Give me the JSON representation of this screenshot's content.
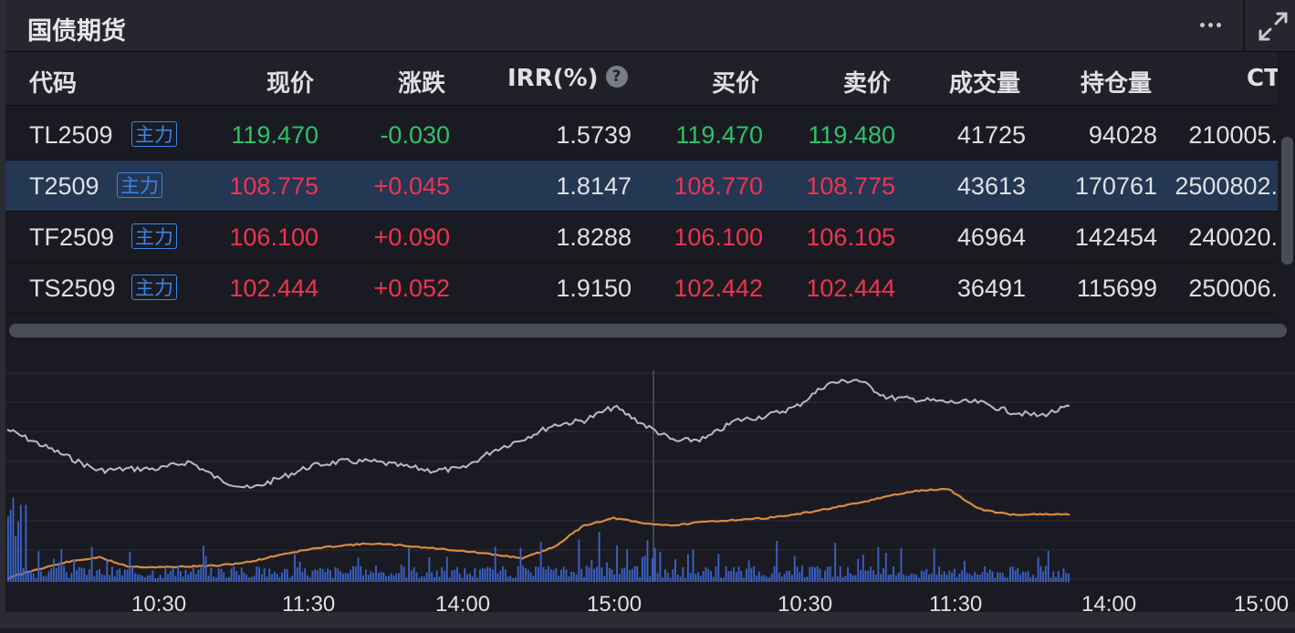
{
  "header": {
    "title": "国债期货"
  },
  "icons": {
    "more": "more-dots-icon",
    "expand": "expand-arrows-icon",
    "help": "help-circle-icon"
  },
  "colors": {
    "up": "#f0334f",
    "down": "#2fc16a",
    "badge": "#3a86e8",
    "selected_row": "#243753",
    "price_line": "#b8bac2",
    "volume_line": "#d98a3f",
    "volume_bar": "#3d63c9"
  },
  "table": {
    "columns": [
      "代码",
      "现价",
      "涨跌",
      "IRR(%)",
      "买价",
      "卖价",
      "成交量",
      "持仓量",
      "CT"
    ],
    "rows": [
      {
        "code": "TL2509",
        "badge": "主力",
        "price": "119.470",
        "change": "-0.030",
        "irr": "1.5739",
        "bid": "119.470",
        "ask": "119.480",
        "volume": "41725",
        "open_interest": "94028",
        "ct": "210005.",
        "dir": "down"
      },
      {
        "code": "T2509",
        "badge": "主力",
        "price": "108.775",
        "change": "+0.045",
        "irr": "1.8147",
        "bid": "108.770",
        "ask": "108.775",
        "volume": "43613",
        "open_interest": "170761",
        "ct": "2500802.",
        "dir": "up"
      },
      {
        "code": "TF2509",
        "badge": "主力",
        "price": "106.100",
        "change": "+0.090",
        "irr": "1.8288",
        "bid": "106.100",
        "ask": "106.105",
        "volume": "46964",
        "open_interest": "142454",
        "ct": "240020.",
        "dir": "up"
      },
      {
        "code": "TS2509",
        "badge": "主力",
        "price": "102.444",
        "change": "+0.052",
        "irr": "1.9150",
        "bid": "102.442",
        "ask": "102.444",
        "volume": "36491",
        "open_interest": "115699",
        "ct": "250006.",
        "dir": "up"
      }
    ]
  },
  "chart": {
    "x_labels": [
      "10:30",
      "11:30",
      "14:00",
      "15:00",
      "10:30",
      "11:30",
      "14:00",
      "15:00"
    ]
  }
}
